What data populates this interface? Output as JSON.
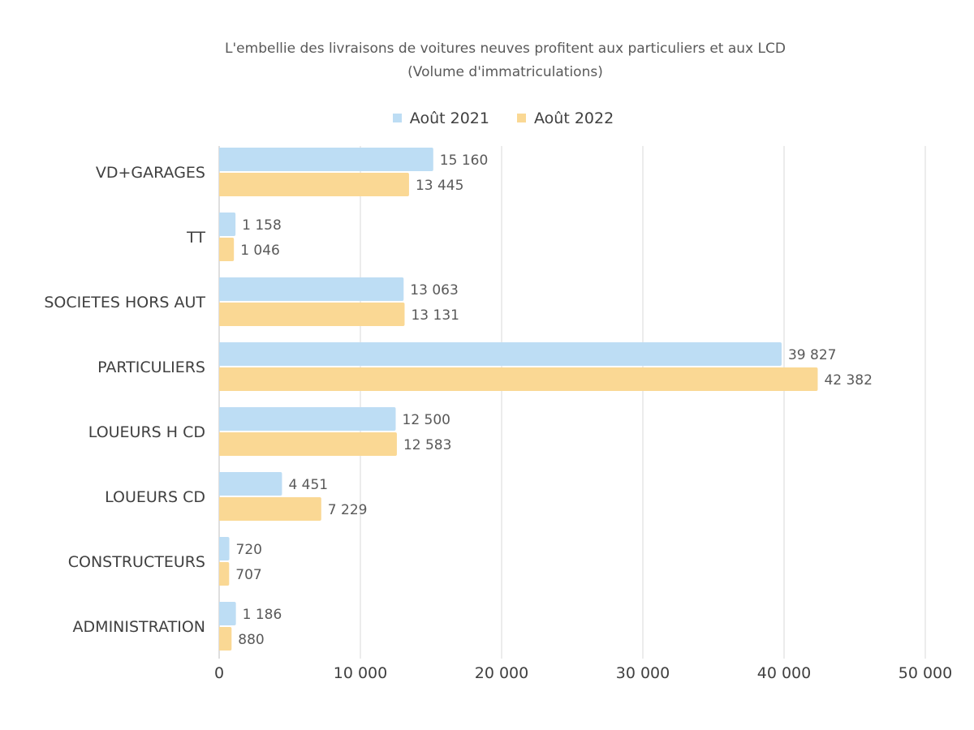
{
  "chart_data": {
    "type": "bar",
    "orientation": "horizontal",
    "title": "L'embellie des livraisons de voitures neuves profitent aux particuliers et aux LCD",
    "subtitle": "(Volume d'immatriculations)",
    "categories": [
      "VD+GARAGES",
      "TT",
      "SOCIETES HORS AUT",
      "PARTICULIERS",
      "LOUEURS H CD",
      "LOUEURS CD",
      "CONSTRUCTEURS",
      "ADMINISTRATION"
    ],
    "series": [
      {
        "name": "Août 2021",
        "color": "#BDDDF4",
        "values": [
          15160,
          1158,
          13063,
          39827,
          12500,
          4451,
          720,
          1186
        ],
        "labels": [
          "15 160",
          "1 158",
          "13 063",
          "39 827",
          "12 500",
          "4 451",
          "720",
          "1 186"
        ]
      },
      {
        "name": "Août 2022",
        "color": "#FAD894",
        "values": [
          13445,
          1046,
          13131,
          42382,
          12583,
          7229,
          707,
          880
        ],
        "labels": [
          "13 445",
          "1 046",
          "13 131",
          "42 382",
          "12 583",
          "7 229",
          "707",
          "880"
        ]
      }
    ],
    "xlim": [
      0,
      50000
    ],
    "xticks": [
      0,
      10000,
      20000,
      30000,
      40000,
      50000
    ],
    "xtick_labels": [
      "0",
      "10 000",
      "20 000",
      "30 000",
      "40 000",
      "50 000"
    ],
    "grid": true,
    "legend_position": "top"
  }
}
